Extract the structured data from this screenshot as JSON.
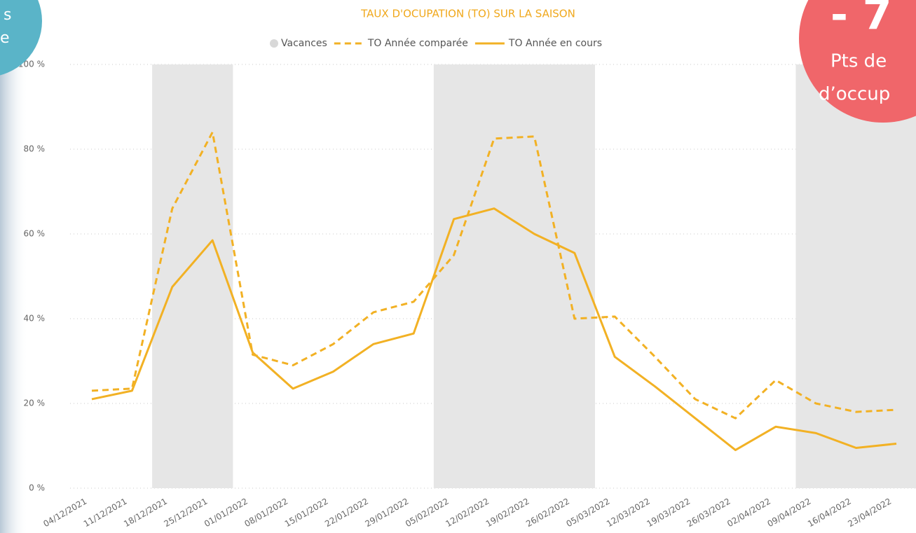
{
  "chart_data": {
    "type": "line",
    "title": "TAUX D'OCUPATION (TO) SUR LA SAISON",
    "categories": [
      "04/12/2021",
      "11/12/2021",
      "18/12/2021",
      "25/12/2021",
      "01/01/2022",
      "08/01/2022",
      "15/01/2022",
      "22/01/2022",
      "29/01/2022",
      "05/02/2022",
      "12/02/2022",
      "19/02/2022",
      "26/02/2022",
      "05/03/2022",
      "12/03/2022",
      "19/03/2022",
      "26/03/2022",
      "02/04/2022",
      "09/04/2022",
      "16/04/2022",
      "23/04/2022"
    ],
    "series": [
      {
        "name": "Vacances",
        "kind": "bar",
        "color": "#e6e6e6",
        "values": [
          null,
          null,
          100,
          100,
          null,
          null,
          null,
          null,
          null,
          100,
          100,
          100,
          100,
          null,
          null,
          null,
          null,
          null,
          100,
          100,
          100
        ]
      },
      {
        "name": "TO Année comparée",
        "kind": "dashed",
        "color": "#f2b124",
        "values": [
          23,
          23.5,
          66,
          84,
          31.5,
          29,
          34,
          41.5,
          44,
          55,
          82.5,
          83,
          40,
          40.5,
          31,
          21,
          16.5,
          25.5,
          20,
          18,
          18.5
        ]
      },
      {
        "name": "TO Année en cours",
        "kind": "solid",
        "color": "#f2b124",
        "values": [
          21,
          23,
          47.5,
          58.5,
          32,
          23.5,
          27.5,
          34,
          36.5,
          63.5,
          66,
          60,
          55.5,
          31,
          24,
          16.5,
          9,
          14.5,
          13,
          9.5,
          10.5
        ]
      }
    ],
    "ylim": [
      0,
      100
    ],
    "yticks": [
      {
        "value": 0,
        "label": "0 %"
      },
      {
        "value": 20,
        "label": "20 %"
      },
      {
        "value": 40,
        "label": "40 %"
      },
      {
        "value": 60,
        "label": "60 %"
      },
      {
        "value": 80,
        "label": "80 %"
      },
      {
        "value": 100,
        "label": "100 %"
      }
    ],
    "grid": true
  },
  "badges": {
    "left": [
      "s",
      "e"
    ],
    "right": [
      "- 7",
      "Pts de",
      "d’occup"
    ]
  }
}
